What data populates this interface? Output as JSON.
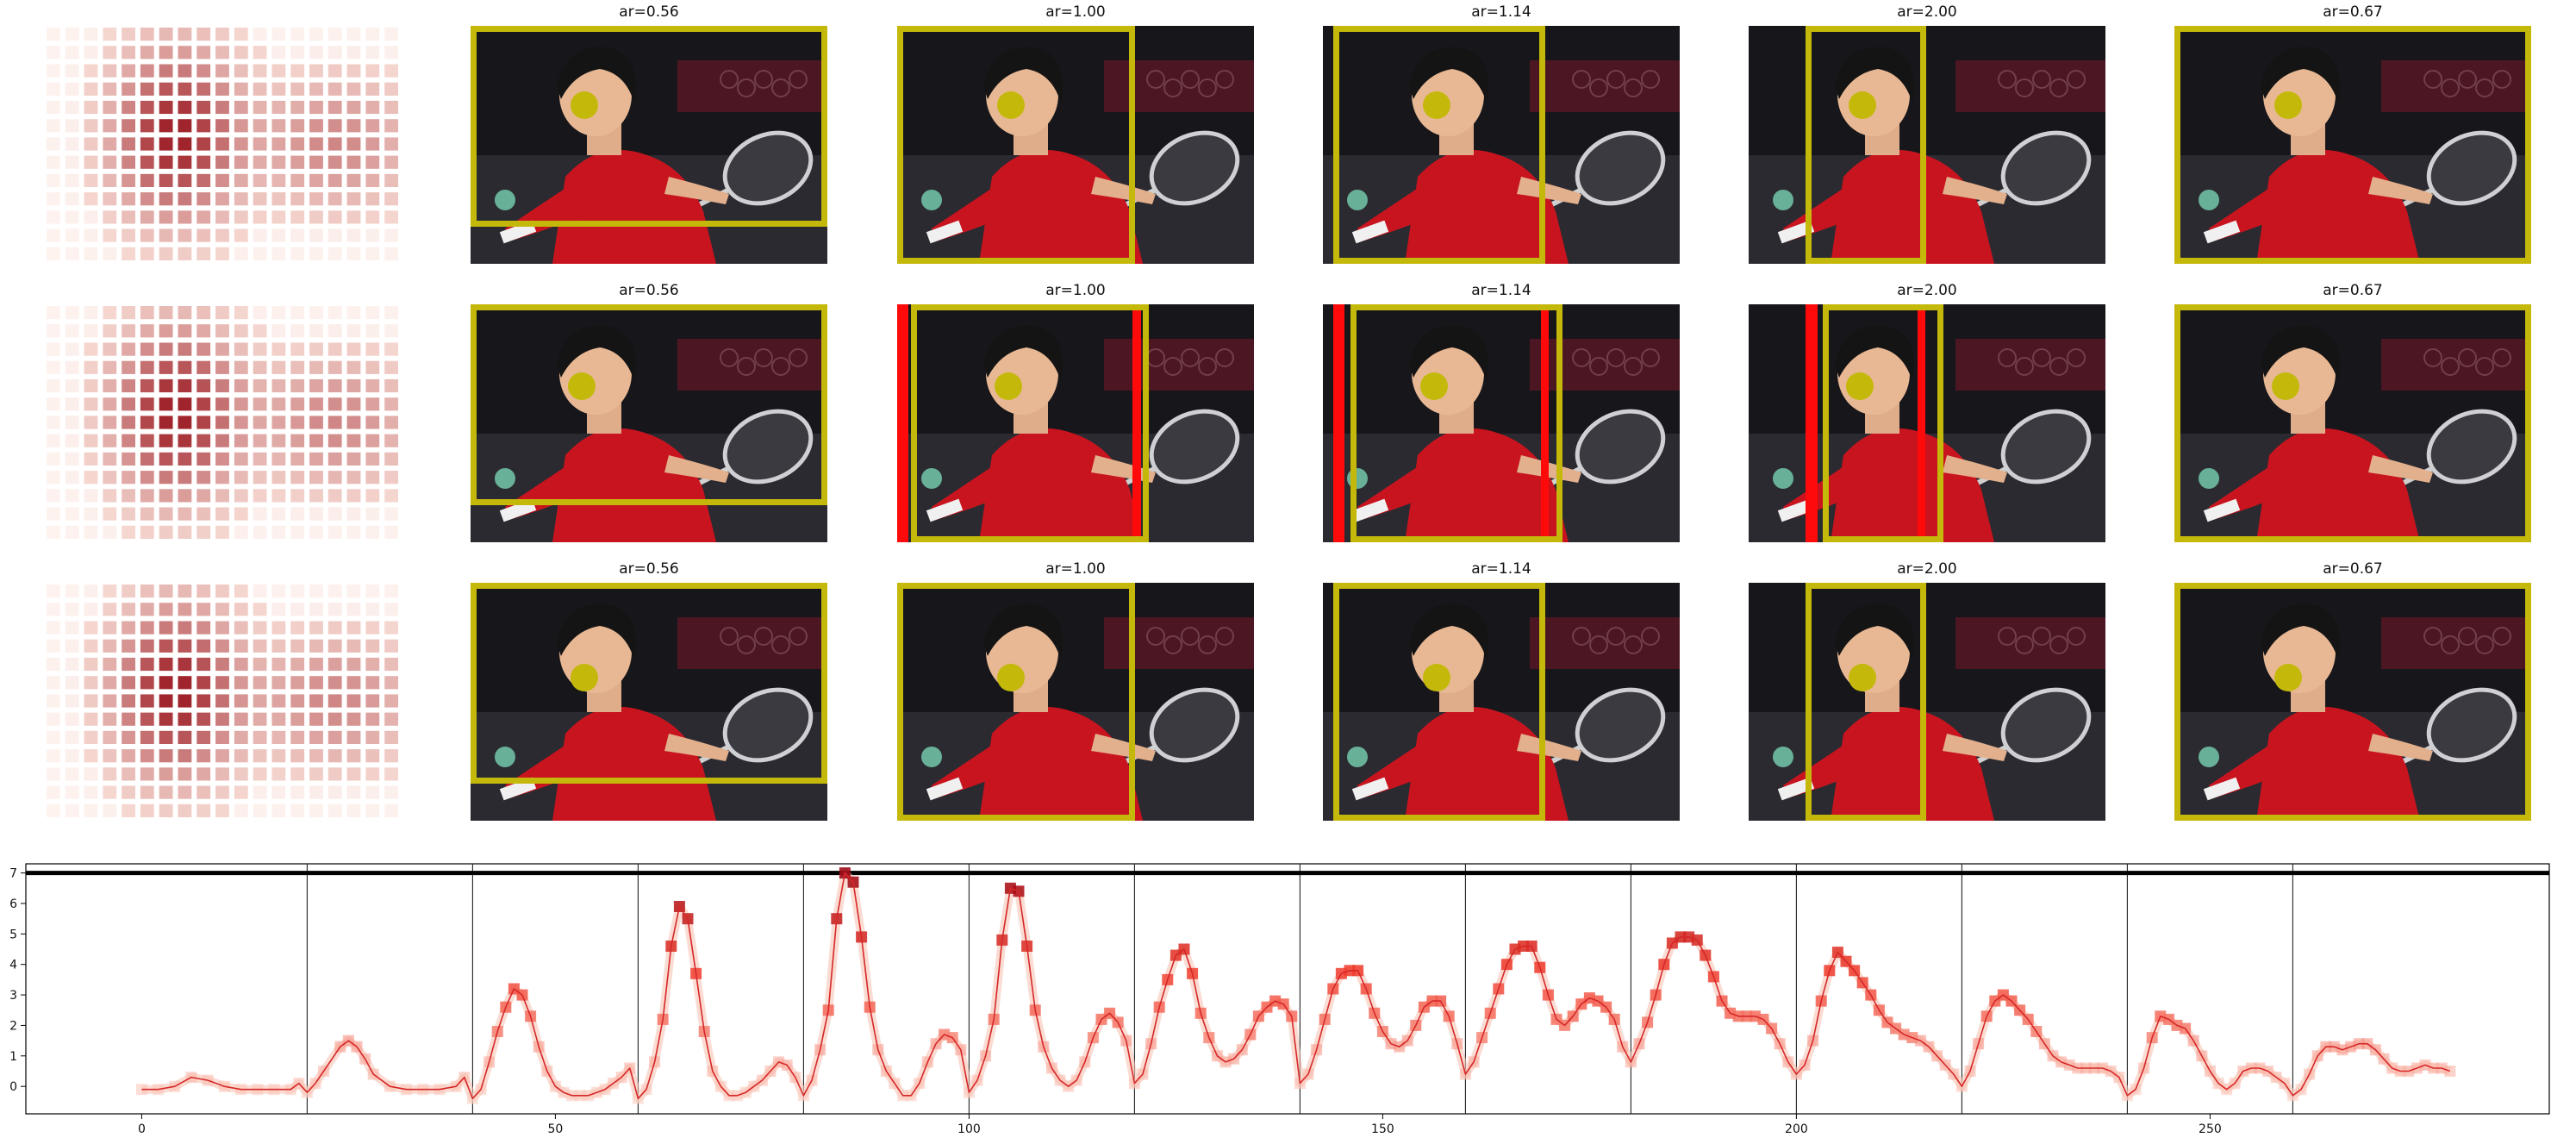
{
  "colors": {
    "box": "#c4b80b",
    "red_marker": "#ff0a0a",
    "line": "#d62728",
    "threshold": "#000000",
    "marker_low": "#fee0d2",
    "marker_high": "#99000d"
  },
  "grid": {
    "rows": [
      {
        "panels": [
          {
            "type": "heatmap"
          },
          {
            "type": "photo",
            "title": "ar=0.56"
          },
          {
            "type": "photo",
            "title": "ar=1.00"
          },
          {
            "type": "photo",
            "title": "ar=1.14"
          },
          {
            "type": "photo",
            "title": "ar=2.00"
          },
          {
            "type": "photo",
            "title": "ar=0.67"
          }
        ]
      },
      {
        "panels": [
          {
            "type": "heatmap"
          },
          {
            "type": "photo",
            "title": "ar=0.56"
          },
          {
            "type": "photo",
            "title": "ar=1.00"
          },
          {
            "type": "photo",
            "title": "ar=1.14"
          },
          {
            "type": "photo",
            "title": "ar=2.00"
          },
          {
            "type": "photo",
            "title": "ar=0.67"
          }
        ]
      },
      {
        "panels": [
          {
            "type": "heatmap"
          },
          {
            "type": "photo",
            "title": "ar=0.56"
          },
          {
            "type": "photo",
            "title": "ar=1.00"
          },
          {
            "type": "photo",
            "title": "ar=1.14"
          },
          {
            "type": "photo",
            "title": "ar=2.00"
          },
          {
            "type": "photo",
            "title": "ar=0.67"
          }
        ]
      }
    ]
  },
  "chart_data": {
    "type": "line",
    "xlim": [
      -14,
      291
    ],
    "ylim": [
      -0.9,
      7.3
    ],
    "xticks": [
      0,
      50,
      100,
      150,
      200,
      250
    ],
    "yticks": [
      0,
      1,
      2,
      3,
      4,
      5,
      6,
      7
    ],
    "threshold": 7,
    "segment_boundaries": [
      20,
      40,
      60,
      80,
      100,
      120,
      140,
      160,
      180,
      200,
      220,
      240,
      260
    ],
    "series": [
      {
        "x": [
          0,
          2,
          4,
          6,
          8,
          10,
          12,
          14,
          16,
          18,
          19,
          20,
          21,
          22,
          24,
          25,
          26,
          27,
          28,
          30,
          32,
          34,
          36,
          38,
          39,
          40,
          41,
          42,
          43,
          44,
          45,
          46,
          47,
          48,
          49,
          50,
          51,
          52,
          53,
          54,
          55,
          56,
          57,
          58,
          59,
          60,
          61,
          62,
          63,
          64,
          65,
          66,
          67,
          68,
          69,
          70,
          71,
          72,
          73,
          74,
          75,
          76,
          77,
          78,
          79,
          80,
          81,
          82,
          83,
          84,
          85,
          86,
          87,
          88,
          89,
          90,
          91,
          92,
          93,
          94,
          95,
          96,
          97,
          98,
          99,
          100,
          101,
          102,
          103,
          104,
          105,
          106,
          107,
          108,
          109,
          110,
          111,
          112,
          113,
          114,
          115,
          116,
          117,
          118,
          119,
          120,
          121,
          122,
          123,
          124,
          125,
          126,
          127,
          128,
          129,
          130,
          131,
          132,
          133,
          134,
          135,
          136,
          137,
          138,
          139,
          140,
          141,
          142,
          143,
          144,
          145,
          146,
          147,
          148,
          149,
          150,
          151,
          152,
          153,
          154,
          155,
          156,
          157,
          158,
          159,
          160,
          161,
          162,
          163,
          164,
          165,
          166,
          167,
          168,
          169,
          170,
          171,
          172,
          173,
          174,
          175,
          176,
          177,
          178,
          179,
          180,
          181,
          182,
          183,
          184,
          185,
          186,
          187,
          188,
          189,
          190,
          191,
          192,
          193,
          194,
          195,
          196,
          197,
          198,
          199,
          200,
          201,
          202,
          203,
          204,
          205,
          206,
          207,
          208,
          209,
          210,
          211,
          212,
          213,
          214,
          215,
          216,
          217,
          218,
          219,
          220,
          221,
          222,
          223,
          224,
          225,
          226,
          227,
          228,
          229,
          230,
          231,
          232,
          233,
          234,
          235,
          236,
          237,
          238,
          239,
          240,
          241,
          242,
          243,
          244,
          245,
          246,
          247,
          248,
          249,
          250,
          251,
          252,
          253,
          254,
          255,
          256,
          257,
          258,
          259,
          260,
          261,
          262,
          263,
          264,
          265,
          266,
          267,
          268,
          269,
          270,
          271,
          272,
          273,
          274,
          275,
          276,
          277,
          278,
          279
        ],
        "y": [
          -0.1,
          -0.1,
          0.0,
          0.3,
          0.2,
          0.0,
          -0.1,
          -0.1,
          -0.1,
          -0.1,
          0.1,
          -0.2,
          0.1,
          0.5,
          1.3,
          1.5,
          1.3,
          0.9,
          0.4,
          0.0,
          -0.1,
          -0.1,
          -0.1,
          0.0,
          0.3,
          -0.4,
          -0.1,
          0.8,
          1.8,
          2.6,
          3.2,
          3.0,
          2.3,
          1.3,
          0.5,
          0.0,
          -0.2,
          -0.3,
          -0.3,
          -0.3,
          -0.2,
          -0.1,
          0.1,
          0.3,
          0.6,
          -0.4,
          -0.1,
          0.8,
          2.2,
          4.6,
          5.9,
          5.5,
          3.7,
          1.8,
          0.5,
          0.0,
          -0.3,
          -0.3,
          -0.2,
          0.0,
          0.2,
          0.5,
          0.8,
          0.7,
          0.3,
          -0.3,
          0.2,
          1.2,
          2.5,
          5.5,
          7.0,
          6.7,
          4.9,
          2.6,
          1.2,
          0.5,
          0.1,
          -0.3,
          -0.3,
          0.1,
          0.8,
          1.4,
          1.7,
          1.6,
          1.2,
          -0.2,
          0.2,
          1.0,
          2.2,
          4.8,
          6.5,
          6.4,
          4.6,
          2.5,
          1.3,
          0.6,
          0.2,
          0.0,
          0.2,
          0.8,
          1.6,
          2.2,
          2.4,
          2.1,
          1.5,
          0.1,
          0.4,
          1.4,
          2.6,
          3.5,
          4.3,
          4.5,
          3.7,
          2.4,
          1.6,
          1.0,
          0.8,
          0.9,
          1.2,
          1.7,
          2.3,
          2.6,
          2.8,
          2.7,
          2.3,
          0.1,
          0.4,
          1.2,
          2.2,
          3.2,
          3.7,
          3.8,
          3.8,
          3.2,
          2.4,
          1.8,
          1.4,
          1.3,
          1.5,
          2.0,
          2.6,
          2.8,
          2.8,
          2.3,
          1.4,
          0.4,
          0.8,
          1.6,
          2.4,
          3.2,
          4.0,
          4.5,
          4.6,
          4.6,
          3.9,
          3.0,
          2.2,
          2.0,
          2.3,
          2.7,
          2.9,
          2.8,
          2.6,
          2.2,
          1.3,
          0.8,
          1.4,
          2.1,
          3.0,
          4.0,
          4.7,
          4.9,
          4.9,
          4.8,
          4.3,
          3.6,
          2.8,
          2.4,
          2.3,
          2.3,
          2.3,
          2.2,
          1.9,
          1.4,
          0.8,
          0.4,
          0.7,
          1.5,
          2.8,
          3.8,
          4.4,
          4.1,
          3.8,
          3.4,
          3.0,
          2.5,
          2.1,
          1.9,
          1.7,
          1.6,
          1.5,
          1.3,
          1.0,
          0.7,
          0.4,
          0.0,
          0.5,
          1.4,
          2.3,
          2.8,
          3.0,
          2.8,
          2.5,
          2.2,
          1.8,
          1.4,
          1.0,
          0.8,
          0.7,
          0.6,
          0.6,
          0.6,
          0.6,
          0.5,
          0.3,
          -0.3,
          -0.1,
          0.6,
          1.6,
          2.3,
          2.2,
          2.0,
          1.9,
          1.5,
          1.0,
          0.5,
          0.1,
          -0.1,
          0.1,
          0.5,
          0.6,
          0.6,
          0.5,
          0.3,
          0.1,
          -0.3,
          -0.1,
          0.4,
          1.0,
          1.3,
          1.3,
          1.2,
          1.3,
          1.4,
          1.4,
          1.2,
          0.9,
          0.6,
          0.5,
          0.5,
          0.6,
          0.7,
          0.6,
          0.6,
          0.5
        ]
      }
    ]
  }
}
